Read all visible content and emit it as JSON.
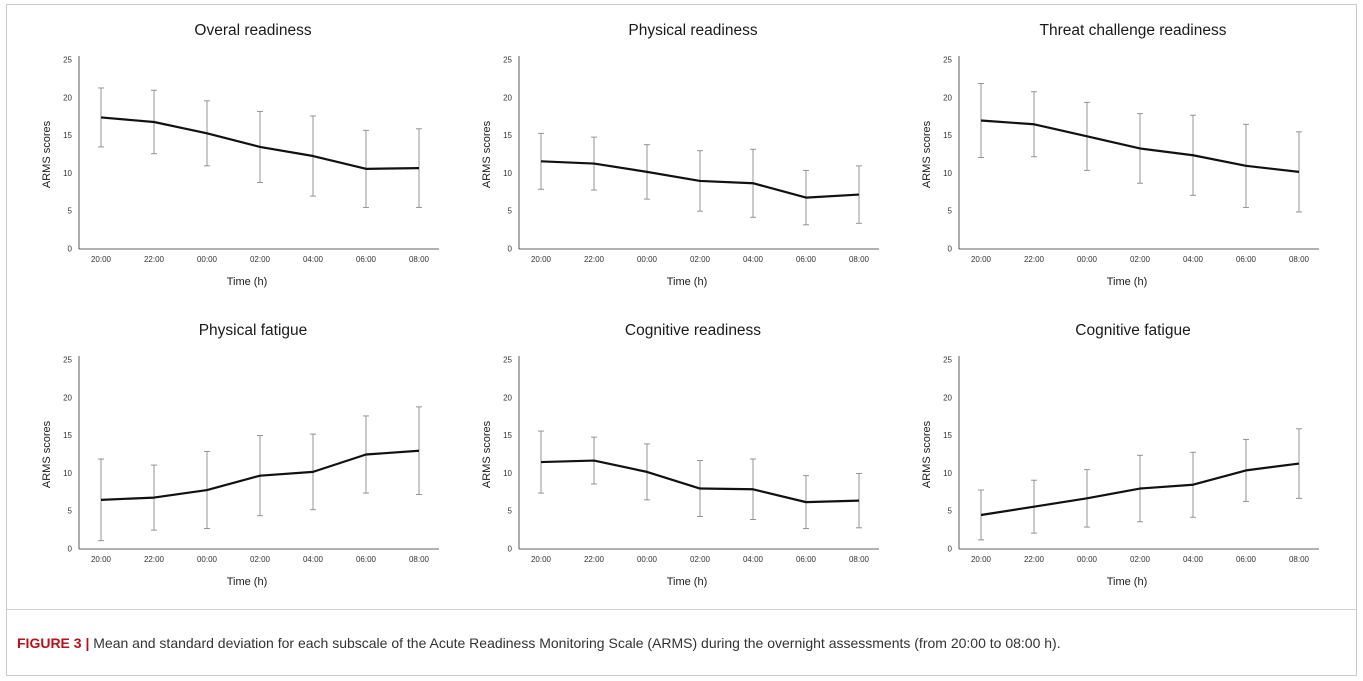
{
  "chart_data": [
    {
      "type": "line",
      "title": "Overal readiness",
      "xlabel": "Time (h)",
      "ylabel": "ARMS scores",
      "categories": [
        "20:00",
        "22:00",
        "00:00",
        "02:00",
        "04:00",
        "06:00",
        "08:00"
      ],
      "ylim": [
        0,
        25
      ],
      "yticks": [
        0,
        5,
        10,
        15,
        20,
        25
      ],
      "values": [
        17.4,
        16.8,
        15.3,
        13.5,
        12.3,
        10.6,
        10.7
      ],
      "error": [
        3.9,
        4.2,
        4.3,
        4.7,
        5.3,
        5.1,
        5.2
      ]
    },
    {
      "type": "line",
      "title": "Physical readiness",
      "xlabel": "Time (h)",
      "ylabel": "ARMS scores",
      "categories": [
        "20:00",
        "22:00",
        "00:00",
        "02:00",
        "04:00",
        "06:00",
        "08:00"
      ],
      "ylim": [
        0,
        25
      ],
      "yticks": [
        0,
        5,
        10,
        15,
        20,
        25
      ],
      "values": [
        11.6,
        11.3,
        10.2,
        9.0,
        8.7,
        6.8,
        7.2
      ],
      "error": [
        3.7,
        3.5,
        3.6,
        4.0,
        4.5,
        3.6,
        3.8
      ]
    },
    {
      "type": "line",
      "title": "Threat challenge readiness",
      "xlabel": "Time (h)",
      "ylabel": "ARMS scores",
      "categories": [
        "20:00",
        "22:00",
        "00:00",
        "02:00",
        "04:00",
        "06:00",
        "08:00"
      ],
      "ylim": [
        0,
        25
      ],
      "yticks": [
        0,
        5,
        10,
        15,
        20,
        25
      ],
      "values": [
        17.0,
        16.5,
        14.9,
        13.3,
        12.4,
        11.0,
        10.2
      ],
      "error": [
        4.9,
        4.3,
        4.5,
        4.6,
        5.3,
        5.5,
        5.3
      ]
    },
    {
      "type": "line",
      "title": "Physical fatigue",
      "xlabel": "Time (h)",
      "ylabel": "ARMS scores",
      "categories": [
        "20:00",
        "22:00",
        "00:00",
        "02:00",
        "04:00",
        "06:00",
        "08:00"
      ],
      "ylim": [
        0,
        25
      ],
      "yticks": [
        0,
        5,
        10,
        15,
        20,
        25
      ],
      "values": [
        6.5,
        6.8,
        7.8,
        9.7,
        10.2,
        12.5,
        13.0
      ],
      "error": [
        5.4,
        4.3,
        5.1,
        5.3,
        5.0,
        5.1,
        5.8
      ]
    },
    {
      "type": "line",
      "title": "Cognitive readiness",
      "xlabel": "Time (h)",
      "ylabel": "ARMS scores",
      "categories": [
        "20:00",
        "22:00",
        "00:00",
        "02:00",
        "04:00",
        "06:00",
        "08:00"
      ],
      "ylim": [
        0,
        25
      ],
      "yticks": [
        0,
        5,
        10,
        15,
        20,
        25
      ],
      "values": [
        11.5,
        11.7,
        10.2,
        8.0,
        7.9,
        6.2,
        6.4
      ],
      "error": [
        4.1,
        3.1,
        3.7,
        3.7,
        4.0,
        3.5,
        3.6
      ]
    },
    {
      "type": "line",
      "title": "Cognitive fatigue",
      "xlabel": "Time (h)",
      "ylabel": "ARMS scores",
      "categories": [
        "20:00",
        "22:00",
        "00:00",
        "02:00",
        "04:00",
        "06:00",
        "08:00"
      ],
      "ylim": [
        0,
        25
      ],
      "yticks": [
        0,
        5,
        10,
        15,
        20,
        25
      ],
      "values": [
        4.5,
        5.6,
        6.7,
        8.0,
        8.5,
        10.4,
        11.3
      ],
      "error": [
        3.3,
        3.5,
        3.8,
        4.4,
        4.3,
        4.1,
        4.6
      ]
    }
  ],
  "caption": {
    "label": "FIGURE 3 |",
    "text": " Mean and standard deviation for each subscale of the Acute Readiness Monitoring Scale (ARMS) during the overnight assessments (from 20:00 to 08:00 h)."
  }
}
